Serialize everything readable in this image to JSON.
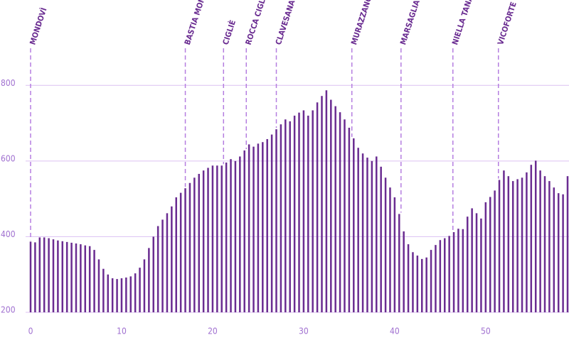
{
  "chart_data": {
    "type": "bar",
    "color": "#6a2c91",
    "grid": true,
    "x": [
      0,
      0.5,
      1,
      1.5,
      2,
      2.5,
      3,
      3.5,
      4,
      4.5,
      5,
      5.5,
      6,
      6.5,
      7,
      7.5,
      8,
      8.5,
      9,
      9.5,
      10,
      10.5,
      11,
      11.5,
      12,
      12.5,
      13,
      13.5,
      14,
      14.5,
      15,
      15.5,
      16,
      16.5,
      17,
      17.5,
      18,
      18.5,
      19,
      19.5,
      20,
      20.5,
      21,
      21.5,
      22,
      22.5,
      23,
      23.5,
      24,
      24.5,
      25,
      25.5,
      26,
      26.5,
      27,
      27.5,
      28,
      28.5,
      29,
      29.5,
      30,
      30.5,
      31,
      31.5,
      32,
      32.5,
      33,
      33.5,
      34,
      34.5,
      35,
      35.5,
      36,
      36.5,
      37,
      37.5,
      38,
      38.5,
      39,
      39.5,
      40,
      40.5,
      41,
      41.5,
      42,
      42.5,
      43,
      43.5,
      44,
      44.5,
      45,
      45.5,
      46,
      46.5,
      47,
      47.5,
      48,
      48.5,
      49,
      49.5,
      50,
      50.5,
      51,
      51.5,
      52,
      52.5,
      53,
      53.5,
      54,
      54.5,
      55,
      55.5,
      56,
      56.5,
      57,
      57.5,
      58,
      58.5,
      59
    ],
    "values": [
      387,
      385,
      398,
      398,
      396,
      393,
      390,
      388,
      386,
      384,
      382,
      380,
      377,
      375,
      365,
      340,
      315,
      300,
      290,
      288,
      290,
      292,
      295,
      303,
      318,
      340,
      370,
      400,
      428,
      445,
      462,
      480,
      504,
      516,
      528,
      542,
      556,
      566,
      575,
      582,
      588,
      588,
      588,
      596,
      605,
      600,
      612,
      628,
      644,
      638,
      646,
      650,
      658,
      670,
      684,
      697,
      710,
      705,
      720,
      728,
      734,
      720,
      734,
      755,
      772,
      787,
      762,
      745,
      729,
      710,
      688,
      660,
      635,
      620,
      609,
      600,
      612,
      585,
      556,
      530,
      504,
      460,
      414,
      380,
      359,
      350,
      341,
      345,
      365,
      378,
      391,
      396,
      402,
      412,
      421,
      420,
      453,
      475,
      462,
      448,
      491,
      505,
      522,
      550,
      575,
      560,
      547,
      552,
      556,
      570,
      590,
      601,
      575,
      560,
      547,
      530,
      515,
      512,
      560
    ],
    "xlim": [
      0,
      59
    ],
    "xticks": [
      0,
      10,
      20,
      30,
      40,
      50
    ],
    "ylim": [
      200,
      900
    ],
    "yticks": [
      200,
      400,
      600,
      800
    ],
    "places": [
      {
        "name": "MONDOVÌ",
        "km": 0
      },
      {
        "name": "BASTIA MONDOVÌ",
        "km": 17
      },
      {
        "name": "CIGLIÈ",
        "km": 21.2
      },
      {
        "name": "ROCCA CIGLIÈ",
        "km": 23.7
      },
      {
        "name": "CLAVESANA",
        "km": 27
      },
      {
        "name": "MURAZZANO",
        "km": 35.3
      },
      {
        "name": "MARSAGLIA",
        "km": 40.7
      },
      {
        "name": "NIELLA TANARO",
        "km": 46.4
      },
      {
        "name": "VICOFORTE",
        "km": 51.4
      }
    ]
  }
}
